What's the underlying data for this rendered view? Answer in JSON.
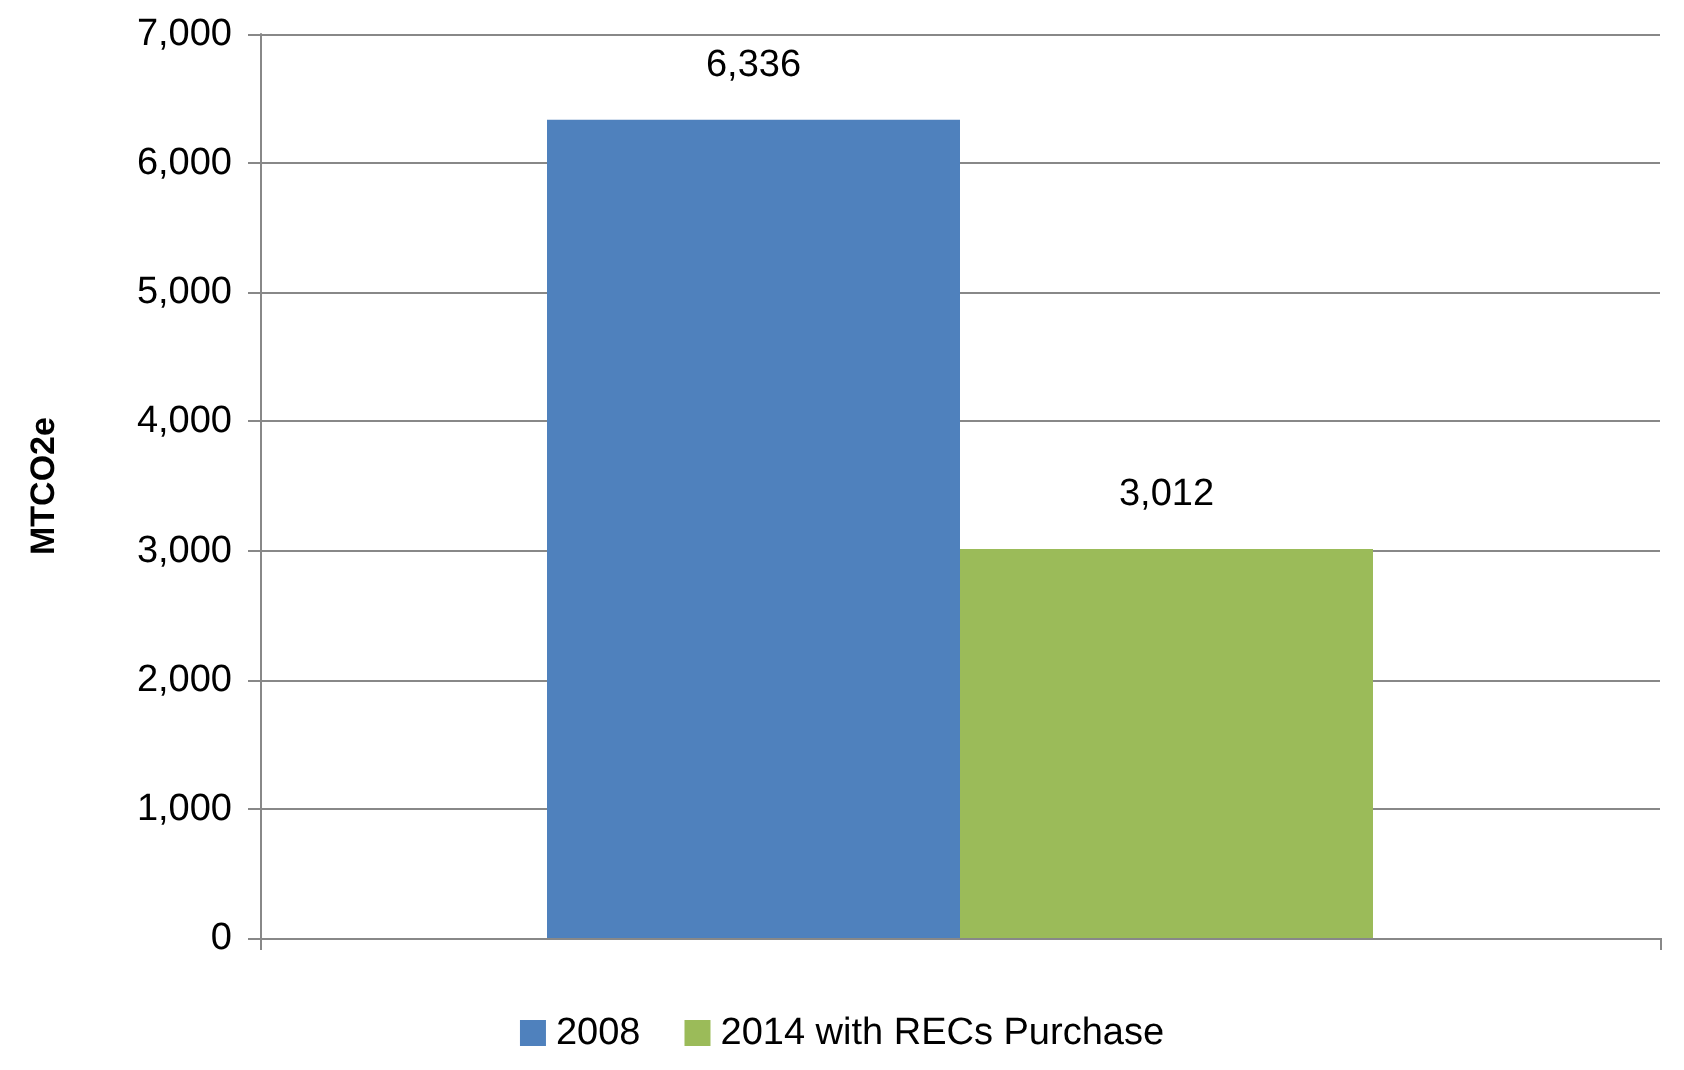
{
  "chart_data": {
    "type": "bar",
    "ylabel": "MTCO2e",
    "categories": [
      null
    ],
    "series": [
      {
        "name": "2008",
        "color": "#4f81bd",
        "values": [
          6336
        ],
        "value_labels": [
          "6,336"
        ]
      },
      {
        "name": "2014 with RECs Purchase",
        "color": "#9bbb59",
        "values": [
          3012
        ],
        "value_labels": [
          "3,012"
        ]
      }
    ],
    "ylim": [
      0,
      7000
    ],
    "yticks": [
      0,
      {
        "value": 1000,
        "label": "1,000"
      },
      {
        "value": 2000,
        "label": "2,000"
      },
      {
        "value": 3000,
        "label": "3,000"
      },
      {
        "value": 4000,
        "label": "4,000"
      },
      {
        "value": 5000,
        "label": "5,000"
      },
      {
        "value": 6000,
        "label": "6,000"
      },
      {
        "value": 7000,
        "label": "7,000"
      }
    ],
    "grid": "y",
    "legend": "bottom"
  }
}
